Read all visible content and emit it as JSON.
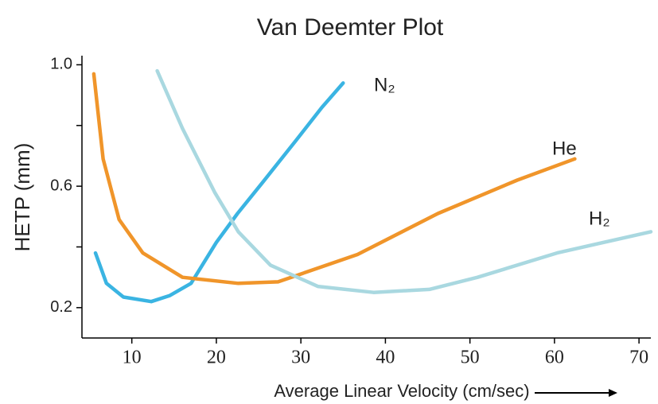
{
  "chart_data": {
    "type": "line",
    "title": "Van Deemter Plot",
    "x_label": "Average Linear Velocity (cm/sec)",
    "y_label": "HETP (mm)",
    "xlim": [
      4.1,
      71.4
    ],
    "ylim": [
      0.1,
      1.03
    ],
    "xticks": [
      10,
      20,
      30,
      40,
      50,
      60,
      70
    ],
    "yticks": [
      {
        "value": 0.2,
        "label": "0.2"
      },
      {
        "value": 0.6,
        "label": "0.6"
      },
      {
        "value": 1,
        "label": "1.0"
      }
    ],
    "yminor_ticks": [
      0.4,
      0.8
    ],
    "series": [
      {
        "name": "N₂",
        "color": "#3ab4e2",
        "x": [
          5.7,
          7,
          9,
          12.3,
          14.5,
          17,
          20,
          22.5,
          25.4,
          29.4,
          32.5,
          35
        ],
        "values": [
          0.38,
          0.28,
          0.235,
          0.22,
          0.24,
          0.28,
          0.415,
          0.51,
          0.61,
          0.75,
          0.86,
          0.94
        ]
      },
      {
        "name": "He",
        "color": "#f0952a",
        "x": [
          5.5,
          6.6,
          8.5,
          11.3,
          16,
          22.6,
          27.3,
          36.7,
          46.2,
          55.6,
          62.4
        ],
        "values": [
          0.97,
          0.69,
          0.49,
          0.38,
          0.3,
          0.28,
          0.285,
          0.375,
          0.51,
          0.62,
          0.69
        ]
      },
      {
        "name": "H₂",
        "color": "#a9d8e0",
        "x": [
          13,
          16,
          19.8,
          22.6,
          26.4,
          32,
          38.6,
          45.2,
          50.9,
          60.3,
          71.4
        ],
        "values": [
          0.98,
          0.79,
          0.58,
          0.45,
          0.34,
          0.27,
          0.25,
          0.26,
          0.3,
          0.38,
          0.45
        ]
      }
    ]
  }
}
